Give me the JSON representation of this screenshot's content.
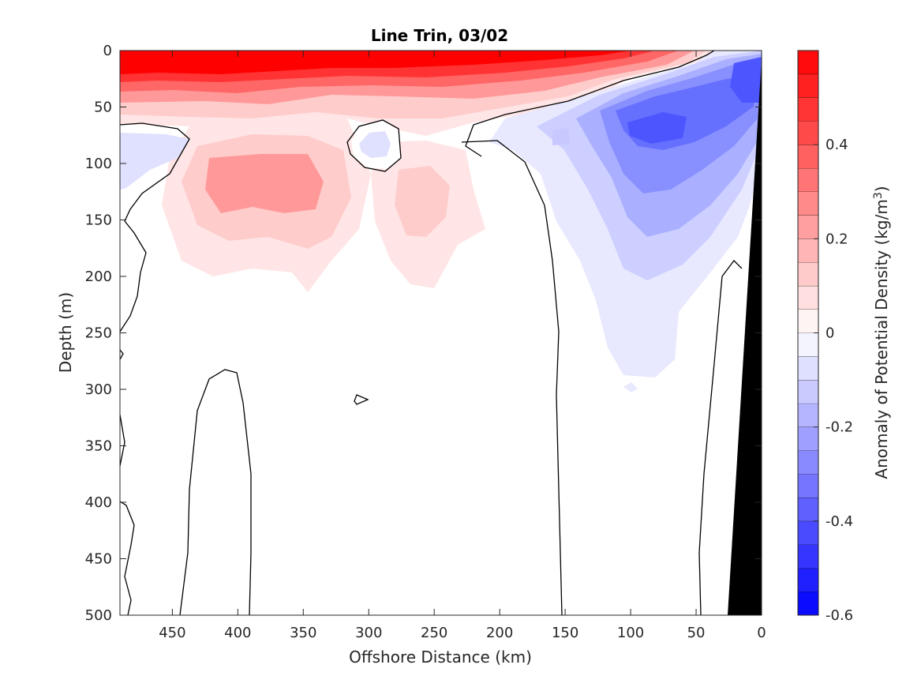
{
  "chart_data": {
    "type": "heatmap",
    "subtype": "filled-contour section",
    "title": "Line Trin, 03/02",
    "xlabel": "Offshore Distance (km)",
    "ylabel": "Depth (m)",
    "colorbar_label": "Anomaly of Potential Density (kg/m",
    "colorbar_label_superscript": "3",
    "colorbar_label_suffix": ")",
    "x_direction": "reversed",
    "y_direction": "reversed (depth increases downward)",
    "xlim": [
      490,
      0
    ],
    "ylim": [
      0,
      500
    ],
    "x_ticks": [
      450,
      400,
      350,
      300,
      250,
      200,
      150,
      100,
      50,
      0
    ],
    "x_tick_labels": [
      "450",
      "400",
      "350",
      "300",
      "250",
      "200",
      "150",
      "100",
      "50",
      "0"
    ],
    "y_ticks": [
      0,
      50,
      100,
      150,
      200,
      250,
      300,
      350,
      400,
      450,
      500
    ],
    "y_tick_labels": [
      "0",
      "50",
      "100",
      "150",
      "200",
      "250",
      "300",
      "350",
      "400",
      "450",
      "500"
    ],
    "colorbar_range": [
      -0.6,
      0.6
    ],
    "colorbar_ticks": [
      0.4,
      0.2,
      0,
      -0.2,
      -0.4,
      -0.6
    ],
    "colorbar_tick_labels": [
      "0.4",
      "0.2",
      "0",
      "-0.2",
      "-0.4",
      "-0.6"
    ],
    "contour_interval": 0.05,
    "zero_contour_color": "#000000",
    "colormap": {
      "negative": "#0000ff",
      "zero": "#ffffff",
      "positive": "#ff0000"
    },
    "bathymetry_color": "#000000",
    "features": [
      {
        "type": "positive_anomaly",
        "x": 330,
        "y": 20,
        "value": 0.6
      },
      {
        "type": "positive_anomaly",
        "x": 390,
        "y": 115,
        "value": 0.25
      },
      {
        "type": "positive_anomaly",
        "x": 255,
        "y": 130,
        "value": 0.15
      },
      {
        "type": "negative_anomaly",
        "x": 85,
        "y": 70,
        "value": -0.4
      },
      {
        "type": "negative_anomaly",
        "x": 10,
        "y": 30,
        "value": -0.35
      },
      {
        "type": "negative_anomaly",
        "x": 300,
        "y": 85,
        "value": -0.05
      },
      {
        "type": "negative_anomaly",
        "x": 470,
        "y": 95,
        "value": -0.05
      }
    ]
  }
}
